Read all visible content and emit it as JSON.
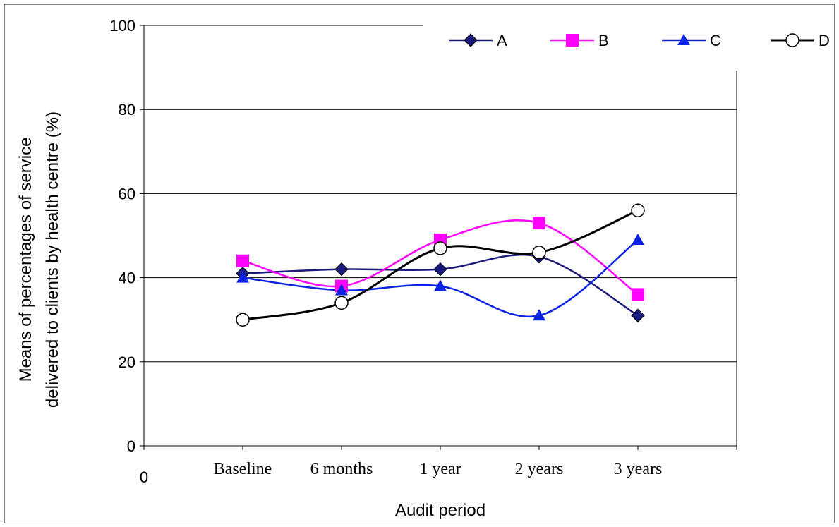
{
  "chart_data": {
    "type": "line",
    "xlabel": "Audit period",
    "ylabel_lines": [
      "Means of percentages of service",
      "delivered to clients by health centre (%)"
    ],
    "categories": [
      "Baseline",
      "6 months",
      "1 year",
      "2 years",
      "3 years"
    ],
    "x_origin_label": "0",
    "ylim": [
      0,
      100
    ],
    "yticks": [
      0,
      20,
      40,
      60,
      80,
      100
    ],
    "grid": true,
    "legend_position": "top-right",
    "smooth": true,
    "series": [
      {
        "name": "A",
        "marker": "diamond",
        "color": "#1a1a7e",
        "values": [
          41,
          42,
          42,
          45,
          31
        ]
      },
      {
        "name": "B",
        "marker": "square",
        "color": "#ff00ff",
        "values": [
          44,
          38,
          49,
          53,
          36
        ]
      },
      {
        "name": "C",
        "marker": "triangle",
        "color": "#0b23e5",
        "values": [
          40,
          37,
          38,
          31,
          49
        ]
      },
      {
        "name": "D",
        "marker": "circle-open",
        "color": "#000000",
        "values": [
          30,
          34,
          47,
          46,
          56
        ]
      }
    ]
  }
}
